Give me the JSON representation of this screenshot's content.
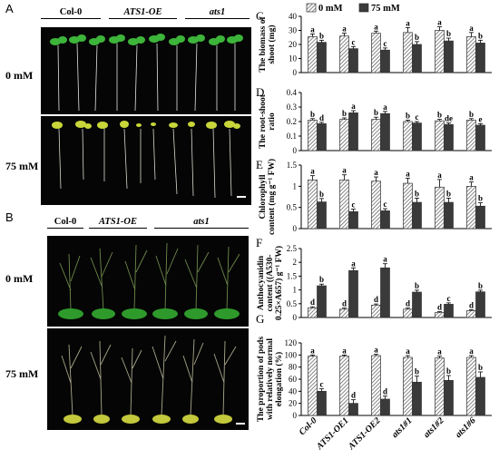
{
  "figure": {
    "panel_letters": [
      "A",
      "B",
      "C",
      "D",
      "E",
      "F",
      "G"
    ],
    "photo_rows": [
      "0 mM",
      "75 mM"
    ],
    "panel_a_genotypes": [
      "Col-0",
      "ATS1-OE",
      "ats1"
    ],
    "panel_b_genotypes": [
      "Col-0",
      "ATS1-OE",
      "ats1"
    ]
  },
  "chart_data": [
    {
      "panel": "C",
      "type": "bar",
      "categories": [
        "Col-0",
        "ATS1-OE1",
        "ATS1-OE2",
        "ats1#1",
        "ats1#2",
        "ats1#6"
      ],
      "legend": [
        "0 mM",
        "75 mM"
      ],
      "legend_position": "top",
      "ylabel_lines": [
        "The biomass of",
        "shoot (mg)"
      ],
      "ylim": [
        0,
        40
      ],
      "yticks": [
        "0",
        "10",
        "20",
        "30",
        "40"
      ],
      "series": [
        {
          "name": "0 mM",
          "values": [
            25.5,
            26,
            28,
            28.5,
            30,
            25.5
          ],
          "errors": [
            2,
            2,
            1.5,
            3.5,
            2.5,
            3
          ],
          "letters": [
            "a",
            "a",
            "a",
            "a",
            "a",
            "a"
          ]
        },
        {
          "name": "75 mM",
          "values": [
            21.5,
            17,
            16,
            20,
            22.5,
            21
          ],
          "errors": [
            1.5,
            1.5,
            1.5,
            2,
            2,
            2
          ],
          "letters": [
            "b",
            "c",
            "c",
            "b",
            "b",
            "b"
          ]
        }
      ]
    },
    {
      "panel": "D",
      "type": "bar",
      "categories": [
        "Col-0",
        "ATS1-OE1",
        "ATS1-OE2",
        "ats1#1",
        "ats1#2",
        "ats1#6"
      ],
      "ylabel_lines": [
        "The root-shoot",
        "ratio"
      ],
      "ylim": [
        0,
        0.4
      ],
      "yticks": [
        "0",
        "0.1",
        "0.2",
        "0.3",
        "0.4"
      ],
      "series": [
        {
          "name": "0 mM",
          "values": [
            0.21,
            0.215,
            0.215,
            0.2,
            0.205,
            0.21
          ],
          "errors": [
            0.01,
            0.01,
            0.015,
            0.01,
            0.01,
            0.01
          ],
          "letters": [
            "b",
            "b",
            "b",
            "b",
            "b",
            "b"
          ]
        },
        {
          "name": "75 mM",
          "values": [
            0.185,
            0.26,
            0.255,
            0.19,
            0.18,
            0.175
          ],
          "errors": [
            0.01,
            0.015,
            0.015,
            0.01,
            0.01,
            0.01
          ],
          "letters": [
            "d",
            "a",
            "a",
            "c",
            "de",
            "e"
          ]
        }
      ]
    },
    {
      "panel": "E",
      "type": "bar",
      "categories": [
        "Col-0",
        "ATS1-OE1",
        "ATS1-OE2",
        "ats1#1",
        "ats1#2",
        "ats1#6"
      ],
      "ylabel_lines": [
        "Chlorophyll",
        "content (mg g⁻¹ FW)"
      ],
      "ylim": [
        0,
        1.5
      ],
      "yticks": [
        "0",
        "0.5",
        "1",
        "1.5"
      ],
      "series": [
        {
          "name": "0 mM",
          "values": [
            1.15,
            1.15,
            1.12,
            1.07,
            0.98,
            1.0
          ],
          "errors": [
            0.1,
            0.12,
            0.1,
            0.12,
            0.18,
            0.1
          ],
          "letters": [
            "a",
            "a",
            "a",
            "a",
            "a",
            "a"
          ]
        },
        {
          "name": "75 mM",
          "values": [
            0.63,
            0.4,
            0.42,
            0.62,
            0.62,
            0.53
          ],
          "errors": [
            0.08,
            0.06,
            0.05,
            0.1,
            0.1,
            0.08
          ],
          "letters": [
            "b",
            "c",
            "c",
            "b",
            "b",
            "b"
          ]
        }
      ]
    },
    {
      "panel": "F",
      "type": "bar",
      "categories": [
        "Col-0",
        "ATS1-OE1",
        "ATS1-OE2",
        "ats1#1",
        "ats1#2",
        "ats1#6"
      ],
      "ylabel_lines": [
        "Anthocyanidin",
        "content ((A530-",
        "0.25×A657) g⁻¹ FW)"
      ],
      "ylim": [
        0,
        2.5
      ],
      "yticks": [
        "0",
        "0.5",
        "1",
        "1.5",
        "2",
        "2.5"
      ],
      "series": [
        {
          "name": "0 mM",
          "values": [
            0.35,
            0.3,
            0.45,
            0.3,
            0.18,
            0.25
          ],
          "errors": [
            0.04,
            0.04,
            0.04,
            0.04,
            0.03,
            0.03
          ],
          "letters": [
            "d",
            "d",
            "d",
            "d",
            "d",
            "d"
          ]
        },
        {
          "name": "75 mM",
          "values": [
            1.15,
            1.7,
            1.8,
            0.92,
            0.48,
            0.93
          ],
          "errors": [
            0.06,
            0.1,
            0.15,
            0.07,
            0.05,
            0.06
          ],
          "letters": [
            "b",
            "a",
            "a",
            "b",
            "c",
            "b"
          ]
        }
      ]
    },
    {
      "panel": "G",
      "type": "bar",
      "categories": [
        "Col-0",
        "ATS1-OE1",
        "ATS1-OE2",
        "ats1#1",
        "ats1#2",
        "ats1#6"
      ],
      "ylabel_lines": [
        "The proportion of pods",
        "with relatively normal",
        "elongation (%)"
      ],
      "ylim": [
        0,
        120
      ],
      "yticks": [
        "0",
        "20",
        "40",
        "60",
        "80",
        "100",
        "120"
      ],
      "series": [
        {
          "name": "0 mM",
          "values": [
            98,
            98,
            99,
            96,
            95,
            96
          ],
          "errors": [
            2,
            2,
            2,
            3,
            3,
            3
          ],
          "letters": [
            "a",
            "a",
            "a",
            "a",
            "a",
            "a"
          ]
        },
        {
          "name": "75 mM",
          "values": [
            40,
            20,
            27,
            55,
            58,
            63
          ],
          "errors": [
            4,
            6,
            5,
            10,
            8,
            9
          ],
          "letters": [
            "c",
            "d",
            "d",
            "b",
            "b",
            "b"
          ]
        }
      ]
    }
  ]
}
